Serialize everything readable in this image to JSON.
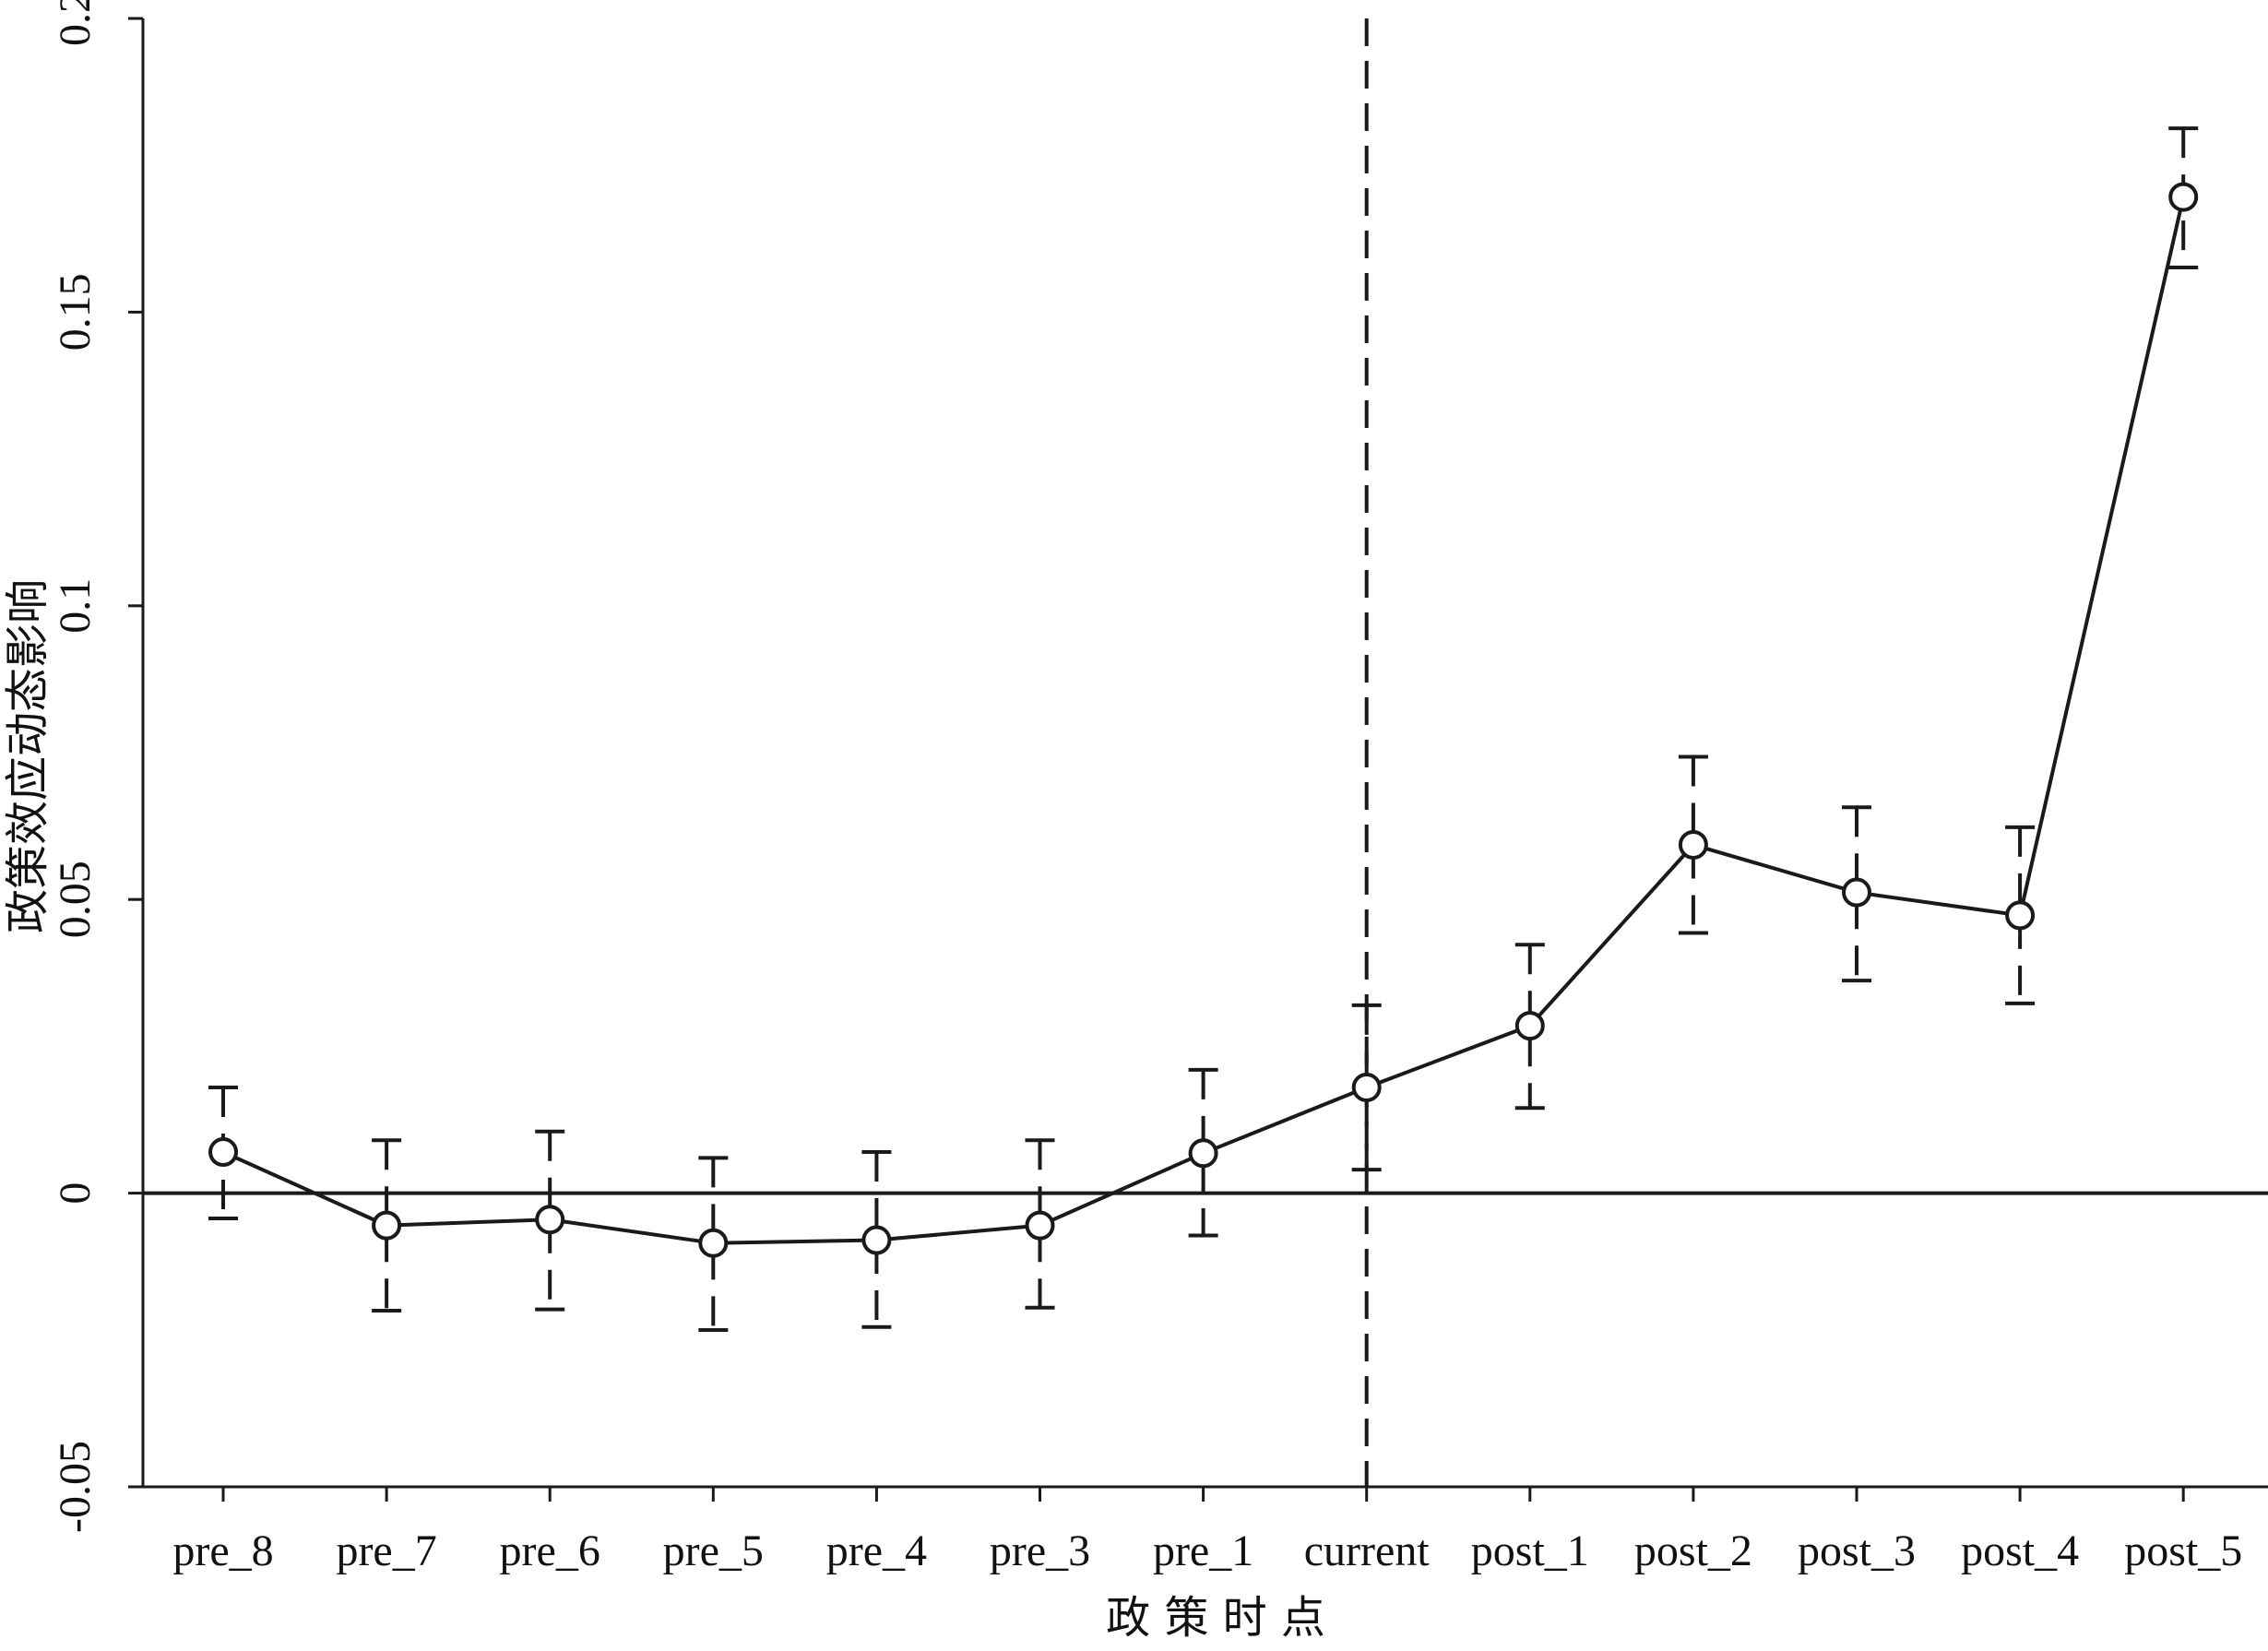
{
  "chart_data": {
    "type": "line",
    "xlabel": "政 策 时 点",
    "ylabel": "政策效应动态影响",
    "categories": [
      "pre_8",
      "pre_7",
      "pre_6",
      "pre_5",
      "pre_4",
      "pre_3",
      "pre_1",
      "current",
      "post_1",
      "post_2",
      "post_3",
      "post_4",
      "post_5"
    ],
    "values": [
      0.007,
      -0.0055,
      -0.0045,
      -0.0085,
      -0.008,
      -0.0055,
      0.0068,
      0.018,
      0.0285,
      0.0593,
      0.0512,
      0.0473,
      0.1696
    ],
    "upper": [
      0.018,
      0.009,
      0.0105,
      0.006,
      0.007,
      0.009,
      0.021,
      0.032,
      0.0423,
      0.0743,
      0.0657,
      0.0623,
      0.1813
    ],
    "lower": [
      -0.0043,
      -0.02,
      -0.0198,
      -0.0233,
      -0.0228,
      -0.0195,
      -0.0072,
      0.004,
      0.0145,
      0.0443,
      0.0362,
      0.0323,
      0.1576
    ],
    "y_ticks": [
      "-0.05",
      "0",
      "0.05",
      "0.1",
      "0.15",
      "0.2"
    ],
    "ylim": [
      -0.05,
      0.2
    ],
    "reference_line_x": "current",
    "reference_line_y": 0,
    "grid": false,
    "legend": "none"
  }
}
